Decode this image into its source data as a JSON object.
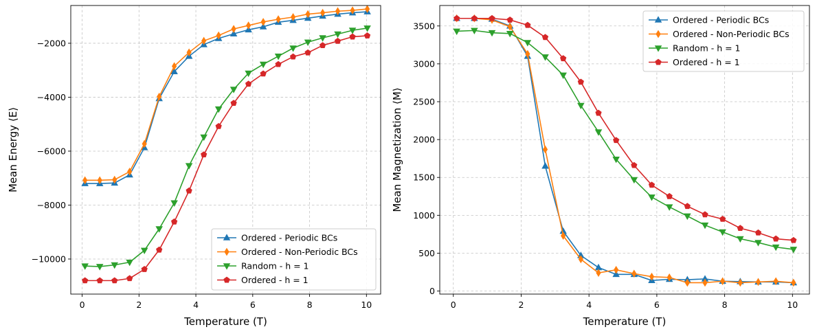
{
  "chart_data": [
    {
      "type": "line",
      "xlabel": "Temperature (T)",
      "ylabel": "Mean Energy ⟨E⟩",
      "xlim": [
        -0.4,
        10.5
      ],
      "ylim": [
        -11300,
        -600
      ],
      "xticks": [
        0,
        2,
        4,
        6,
        8,
        10
      ],
      "xtick_labels": [
        "0",
        "2",
        "4",
        "6",
        "8",
        "10"
      ],
      "yticks": [
        -10000,
        -8000,
        -6000,
        -4000,
        -2000
      ],
      "ytick_labels": [
        "−10000",
        "−8000",
        "−6000",
        "−4000",
        "−2000"
      ],
      "grid": true,
      "legend_position": "lower-right",
      "x": [
        0.1,
        0.62,
        1.14,
        1.67,
        2.19,
        2.71,
        3.24,
        3.76,
        4.28,
        4.8,
        5.33,
        5.85,
        6.37,
        6.9,
        7.42,
        7.94,
        8.46,
        8.99,
        9.51,
        10.03
      ],
      "series": [
        {
          "name": "Ordered - Periodic BCs",
          "color": "#1f77b4",
          "marker": "triangle-up",
          "values": [
            -7200,
            -7200,
            -7180,
            -6880,
            -5870,
            -4050,
            -3050,
            -2480,
            -2050,
            -1820,
            -1650,
            -1500,
            -1390,
            -1220,
            -1150,
            -1070,
            -990,
            -920,
            -870,
            -830
          ]
        },
        {
          "name": "Ordered - Non-Periodic BCs",
          "color": "#ff7f0e",
          "marker": "diamond",
          "values": [
            -7080,
            -7080,
            -7060,
            -6760,
            -5730,
            -3980,
            -2850,
            -2340,
            -1910,
            -1710,
            -1470,
            -1340,
            -1210,
            -1110,
            -1030,
            -920,
            -870,
            -810,
            -780,
            -730
          ]
        },
        {
          "name": "Random - h = 1",
          "color": "#2ca02c",
          "marker": "triangle-down",
          "values": [
            -10260,
            -10280,
            -10220,
            -10120,
            -9680,
            -8880,
            -7920,
            -6540,
            -5480,
            -4440,
            -3710,
            -3110,
            -2780,
            -2480,
            -2180,
            -1960,
            -1800,
            -1660,
            -1520,
            -1440
          ]
        },
        {
          "name": "Ordered - h = 1",
          "color": "#d62728",
          "marker": "pentagon",
          "values": [
            -10800,
            -10800,
            -10800,
            -10720,
            -10380,
            -9660,
            -8620,
            -7470,
            -6130,
            -5080,
            -4220,
            -3510,
            -3130,
            -2780,
            -2500,
            -2350,
            -2080,
            -1920,
            -1760,
            -1720
          ]
        }
      ]
    },
    {
      "type": "line",
      "xlabel": "Temperature (T)",
      "ylabel": "Mean Magnetization ⟨M⟩",
      "xlim": [
        -0.4,
        10.5
      ],
      "ylim": [
        -40,
        3770
      ],
      "xticks": [
        0,
        2,
        4,
        6,
        8,
        10
      ],
      "xtick_labels": [
        "0",
        "2",
        "4",
        "6",
        "8",
        "10"
      ],
      "yticks": [
        0,
        500,
        1000,
        1500,
        2000,
        2500,
        3000,
        3500
      ],
      "ytick_labels": [
        "0",
        "500",
        "1000",
        "1500",
        "2000",
        "2500",
        "3000",
        "3500"
      ],
      "grid": true,
      "legend_position": "upper-right",
      "x": [
        0.1,
        0.62,
        1.14,
        1.67,
        2.19,
        2.71,
        3.24,
        3.76,
        4.28,
        4.8,
        5.33,
        5.85,
        6.37,
        6.9,
        7.42,
        7.94,
        8.46,
        8.99,
        9.51,
        10.03
      ],
      "series": [
        {
          "name": "Ordered - Periodic BCs",
          "color": "#1f77b4",
          "marker": "triangle-up",
          "values": [
            3600,
            3600,
            3590,
            3500,
            3100,
            1650,
            790,
            470,
            310,
            220,
            220,
            140,
            155,
            150,
            160,
            130,
            125,
            120,
            120,
            110
          ]
        },
        {
          "name": "Ordered - Non-Periodic BCs",
          "color": "#ff7f0e",
          "marker": "diamond",
          "values": [
            3600,
            3600,
            3580,
            3490,
            3130,
            1870,
            730,
            420,
            240,
            280,
            230,
            190,
            180,
            110,
            110,
            130,
            110,
            120,
            130,
            110
          ]
        },
        {
          "name": "Random - h = 1",
          "color": "#2ca02c",
          "marker": "triangle-down",
          "values": [
            3430,
            3440,
            3410,
            3400,
            3280,
            3090,
            2850,
            2450,
            2100,
            1740,
            1470,
            1240,
            1110,
            990,
            870,
            780,
            690,
            640,
            580,
            550
          ]
        },
        {
          "name": "Ordered - h = 1",
          "color": "#d62728",
          "marker": "pentagon",
          "values": [
            3600,
            3600,
            3600,
            3580,
            3510,
            3350,
            3070,
            2760,
            2350,
            1990,
            1660,
            1400,
            1250,
            1120,
            1010,
            950,
            830,
            770,
            690,
            670
          ]
        }
      ]
    }
  ]
}
